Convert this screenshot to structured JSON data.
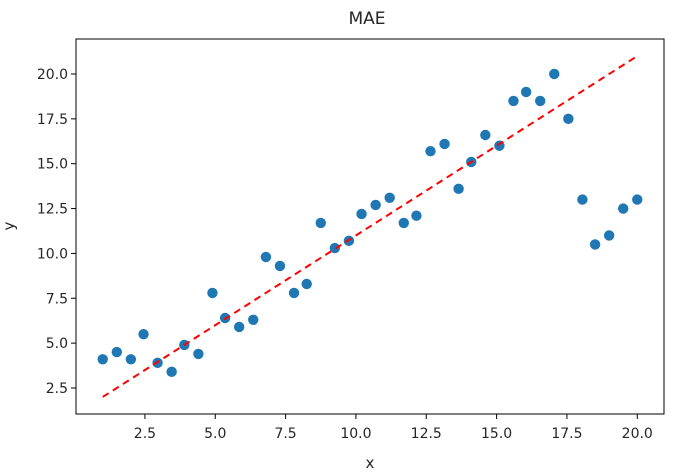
{
  "chart_data": {
    "type": "scatter",
    "title": "MAE",
    "xlabel": "x",
    "ylabel": "y",
    "xlim": [
      0.05,
      20.95
    ],
    "ylim": [
      1.05,
      21.95
    ],
    "x_ticks": [
      2.5,
      5.0,
      7.5,
      10.0,
      12.5,
      15.0,
      17.5,
      20.0
    ],
    "x_tick_labels": [
      "2.5",
      "5.0",
      "7.5",
      "10.0",
      "12.5",
      "15.0",
      "17.5",
      "20.0"
    ],
    "y_ticks": [
      2.5,
      5.0,
      7.5,
      10.0,
      12.5,
      15.0,
      17.5,
      20.0
    ],
    "y_tick_labels": [
      "2.5",
      "5.0",
      "7.5",
      "10.0",
      "12.5",
      "15.0",
      "17.5",
      "20.0"
    ],
    "grid": false,
    "legend": false,
    "series": [
      {
        "type": "scatter",
        "color": "#1f77b4",
        "x": [
          1.0,
          1.5,
          2.0,
          2.45,
          2.95,
          3.45,
          3.9,
          4.4,
          4.9,
          5.35,
          5.85,
          6.35,
          6.8,
          7.3,
          7.8,
          8.25,
          8.75,
          9.25,
          9.75,
          10.2,
          10.7,
          11.2,
          11.7,
          12.15,
          12.65,
          13.15,
          13.65,
          14.1,
          14.6,
          15.1,
          15.6,
          16.05,
          16.55,
          17.05,
          17.55,
          18.05,
          18.5,
          19.0,
          19.5,
          20.0
        ],
        "y": [
          4.1,
          4.5,
          4.1,
          5.5,
          3.9,
          3.4,
          4.9,
          4.4,
          7.8,
          6.4,
          5.9,
          6.3,
          9.8,
          9.3,
          7.8,
          8.3,
          11.7,
          10.3,
          10.7,
          12.2,
          12.7,
          13.1,
          11.7,
          12.1,
          15.7,
          16.1,
          13.6,
          15.1,
          16.6,
          16.0,
          18.5,
          19.0,
          18.5,
          20.0,
          17.5,
          13.0,
          10.5,
          11.0,
          12.5,
          13.0
        ]
      },
      {
        "type": "line",
        "style": "dashed",
        "color": "#ff0000",
        "x": [
          1.0,
          20.0
        ],
        "y": [
          2.0,
          21.0
        ]
      }
    ]
  }
}
